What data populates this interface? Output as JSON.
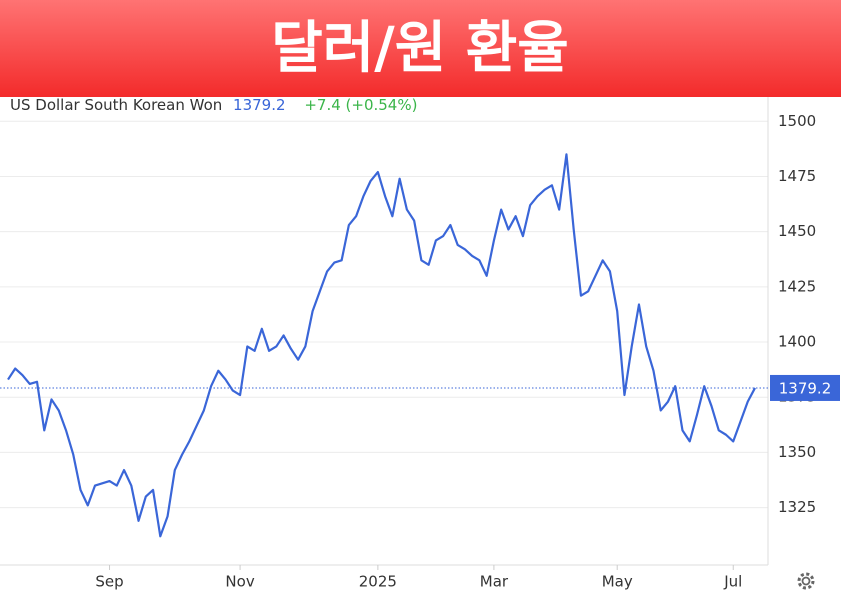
{
  "chart_data": {
    "type": "line",
    "title": "달러/원 환율",
    "subtitle": "US Dollar South Korean Won",
    "change": "+7.4 (+0.54%)",
    "color": "#3a66d8",
    "grid": true,
    "ylim": [
      1299,
      1511
    ],
    "yticks": [
      1325,
      1350,
      1375,
      1400,
      1425,
      1450,
      1475,
      1500
    ],
    "categories": [
      null,
      null,
      null,
      null,
      null,
      null,
      null,
      null,
      null,
      null,
      null,
      null,
      null,
      null,
      "Sep",
      null,
      null,
      null,
      null,
      null,
      null,
      null,
      null,
      null,
      null,
      null,
      null,
      null,
      null,
      null,
      null,
      null,
      "Nov",
      null,
      null,
      null,
      null,
      null,
      null,
      null,
      null,
      null,
      null,
      null,
      null,
      null,
      null,
      null,
      null,
      null,
      null,
      "2025",
      null,
      null,
      null,
      null,
      null,
      null,
      null,
      null,
      null,
      null,
      null,
      null,
      null,
      null,
      null,
      "Mar",
      null,
      null,
      null,
      null,
      null,
      null,
      null,
      null,
      null,
      null,
      null,
      null,
      null,
      null,
      null,
      null,
      "May",
      null,
      null,
      null,
      null,
      null,
      null,
      null,
      null,
      null,
      null,
      null,
      null,
      null,
      null,
      null,
      "Jul",
      null,
      null,
      null
    ],
    "values": [
      1383,
      1388,
      1385,
      1381,
      1382,
      1360,
      1374,
      1369,
      1360,
      1349,
      1333,
      1326,
      1335,
      1336,
      1337,
      1335,
      1342,
      1335,
      1319,
      1330,
      1333,
      1312,
      1321,
      1342,
      1349,
      1355,
      1362,
      1369,
      1380,
      1387,
      1383,
      1378,
      1376,
      1398,
      1396,
      1406,
      1396,
      1398,
      1403,
      1397,
      1392,
      1398,
      1414,
      1423,
      1432,
      1436,
      1437,
      1453,
      1457,
      1466,
      1473,
      1477,
      1466,
      1457,
      1474,
      1460,
      1455,
      1437,
      1435,
      1446,
      1448,
      1453,
      1444,
      1442,
      1439,
      1437,
      1430,
      1446,
      1460,
      1451,
      1457,
      1448,
      1462,
      1466,
      1469,
      1471,
      1460,
      1485,
      1451,
      1421,
      1423,
      1430,
      1437,
      1432,
      1414,
      1376,
      1398,
      1417,
      1398,
      1387,
      1369,
      1373,
      1380,
      1360,
      1355,
      1367,
      1380,
      1371,
      1360,
      1358,
      1355,
      1364,
      1373,
      1379.2
    ]
  }
}
